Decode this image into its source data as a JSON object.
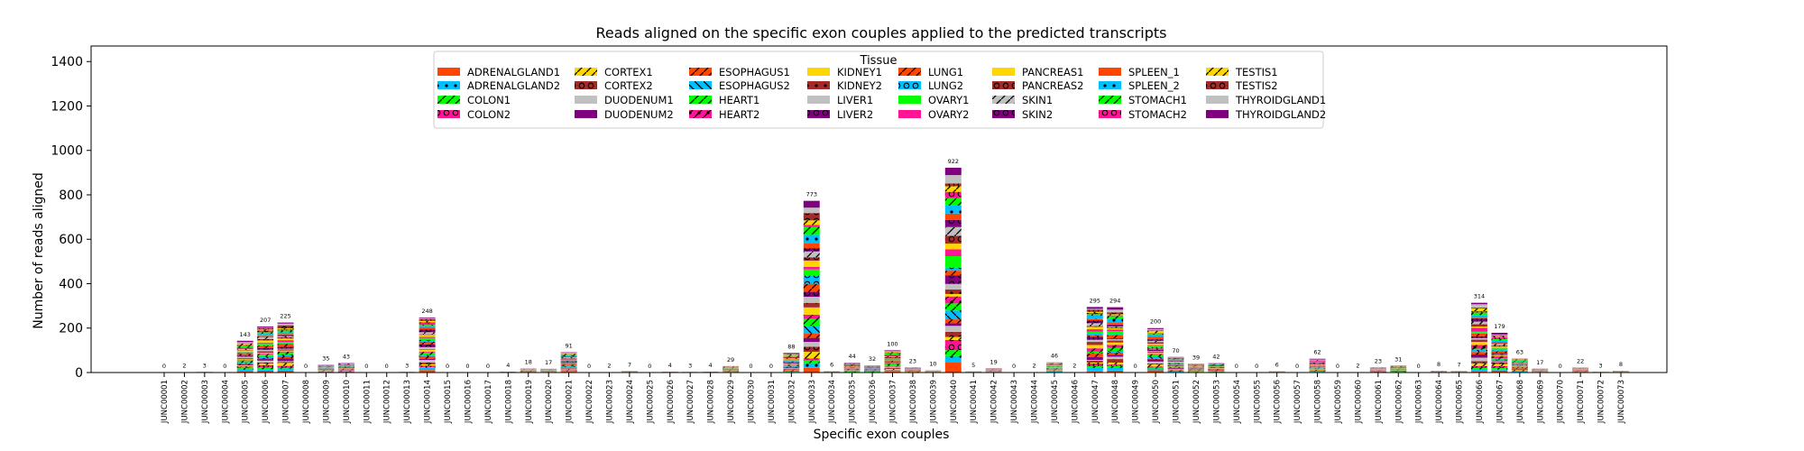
{
  "chart_data": {
    "type": "bar",
    "stacked": true,
    "title": "Reads aligned on the specific exon couples applied to the predicted transcripts",
    "xlabel": "Specific exon couples",
    "ylabel": "Number of reads aligned",
    "ylim": [
      0,
      1470
    ],
    "yticks": [
      0,
      200,
      400,
      600,
      800,
      1000,
      1200,
      1400
    ],
    "grid": false,
    "legend_title": "Tissue",
    "legend_position": "top-center",
    "categories": [
      "JUNC00001",
      "JUNC00002",
      "JUNC00003",
      "JUNC00004",
      "JUNC00005",
      "JUNC00006",
      "JUNC00007",
      "JUNC00008",
      "JUNC00009",
      "JUNC00010",
      "JUNC00011",
      "JUNC00012",
      "JUNC00013",
      "JUNC00014",
      "JUNC00015",
      "JUNC00016",
      "JUNC00017",
      "JUNC00018",
      "JUNC00019",
      "JUNC00020",
      "JUNC00021",
      "JUNC00022",
      "JUNC00023",
      "JUNC00024",
      "JUNC00025",
      "JUNC00026",
      "JUNC00027",
      "JUNC00028",
      "JUNC00029",
      "JUNC00030",
      "JUNC00031",
      "JUNC00032",
      "JUNC00033",
      "JUNC00034",
      "JUNC00035",
      "JUNC00036",
      "JUNC00037",
      "JUNC00038",
      "JUNC00039",
      "JUNC00040",
      "JUNC00041",
      "JUNC00042",
      "JUNC00043",
      "JUNC00044",
      "JUNC00045",
      "JUNC00046",
      "JUNC00047",
      "JUNC00048",
      "JUNC00049",
      "JUNC00050",
      "JUNC00051",
      "JUNC00052",
      "JUNC00053",
      "JUNC00054",
      "JUNC00055",
      "JUNC00056",
      "JUNC00057",
      "JUNC00058",
      "JUNC00059",
      "JUNC00060",
      "JUNC00061",
      "JUNC00062",
      "JUNC00063",
      "JUNC00064",
      "JUNC00065",
      "JUNC00066",
      "JUNC00067",
      "JUNC00068",
      "JUNC00069",
      "JUNC00070",
      "JUNC00071",
      "JUNC00072",
      "JUNC00073"
    ],
    "totals": [
      0,
      2,
      3,
      0,
      143,
      207,
      225,
      0,
      35,
      43,
      0,
      0,
      3,
      248,
      0,
      0,
      0,
      4,
      18,
      17,
      91,
      0,
      2,
      7,
      0,
      4,
      3,
      4,
      29,
      0,
      0,
      88,
      773,
      6,
      44,
      32,
      100,
      23,
      10,
      922,
      5,
      19,
      0,
      2,
      46,
      2,
      295,
      294,
      0,
      200,
      70,
      39,
      42,
      0,
      0,
      6,
      0,
      62,
      0,
      2,
      23,
      31,
      0,
      8,
      7,
      314,
      179,
      63,
      17,
      0,
      22,
      3,
      8
    ],
    "series": [
      {
        "name": "ADRENALGLAND1",
        "color": "#ff4500",
        "hatch": "none"
      },
      {
        "name": "ADRENALGLAND2",
        "color": "#00bfff",
        "hatch": "dot"
      },
      {
        "name": "COLON1",
        "color": "#00ff00",
        "hatch": "slash"
      },
      {
        "name": "COLON2",
        "color": "#ff1493",
        "hatch": "circle"
      },
      {
        "name": "CORTEX1",
        "color": "#ffd700",
        "hatch": "slash"
      },
      {
        "name": "CORTEX2",
        "color": "#a52a2a",
        "hatch": "circle"
      },
      {
        "name": "DUODENUM1",
        "color": "#c0c0c0",
        "hatch": "none"
      },
      {
        "name": "DUODENUM2",
        "color": "#800080",
        "hatch": "none"
      },
      {
        "name": "ESOPHAGUS1",
        "color": "#ff4500",
        "hatch": "slash"
      },
      {
        "name": "ESOPHAGUS2",
        "color": "#00bfff",
        "hatch": "backslash"
      },
      {
        "name": "HEART1",
        "color": "#00ff00",
        "hatch": "slash"
      },
      {
        "name": "HEART2",
        "color": "#ff1493",
        "hatch": "xdot"
      },
      {
        "name": "KIDNEY1",
        "color": "#ffd700",
        "hatch": "none"
      },
      {
        "name": "KIDNEY2",
        "color": "#a52a2a",
        "hatch": "dot"
      },
      {
        "name": "LIVER1",
        "color": "#c0c0c0",
        "hatch": "none"
      },
      {
        "name": "LIVER2",
        "color": "#800080",
        "hatch": "circle"
      },
      {
        "name": "LUNG1",
        "color": "#ff4500",
        "hatch": "slash"
      },
      {
        "name": "LUNG2",
        "color": "#00bfff",
        "hatch": "circle"
      },
      {
        "name": "OVARY1",
        "color": "#00ff00",
        "hatch": "none"
      },
      {
        "name": "OVARY2",
        "color": "#ff1493",
        "hatch": "none"
      },
      {
        "name": "PANCREAS1",
        "color": "#ffd700",
        "hatch": "none"
      },
      {
        "name": "PANCREAS2",
        "color": "#a52a2a",
        "hatch": "circle"
      },
      {
        "name": "SKIN1",
        "color": "#c0c0c0",
        "hatch": "slash"
      },
      {
        "name": "SKIN2",
        "color": "#800080",
        "hatch": "circle"
      },
      {
        "name": "SPLEEN_1",
        "color": "#ff4500",
        "hatch": "none"
      },
      {
        "name": "SPLEEN_2",
        "color": "#00bfff",
        "hatch": "dot"
      },
      {
        "name": "STOMACH1",
        "color": "#00ff00",
        "hatch": "slash"
      },
      {
        "name": "STOMACH2",
        "color": "#ff1493",
        "hatch": "circle"
      },
      {
        "name": "TESTIS1",
        "color": "#ffd700",
        "hatch": "slash"
      },
      {
        "name": "TESTIS2",
        "color": "#a52a2a",
        "hatch": "circle"
      },
      {
        "name": "THYROIDGLAND1",
        "color": "#c0c0c0",
        "hatch": "none"
      },
      {
        "name": "THYROIDGLAND2",
        "color": "#800080",
        "hatch": "none"
      }
    ]
  }
}
